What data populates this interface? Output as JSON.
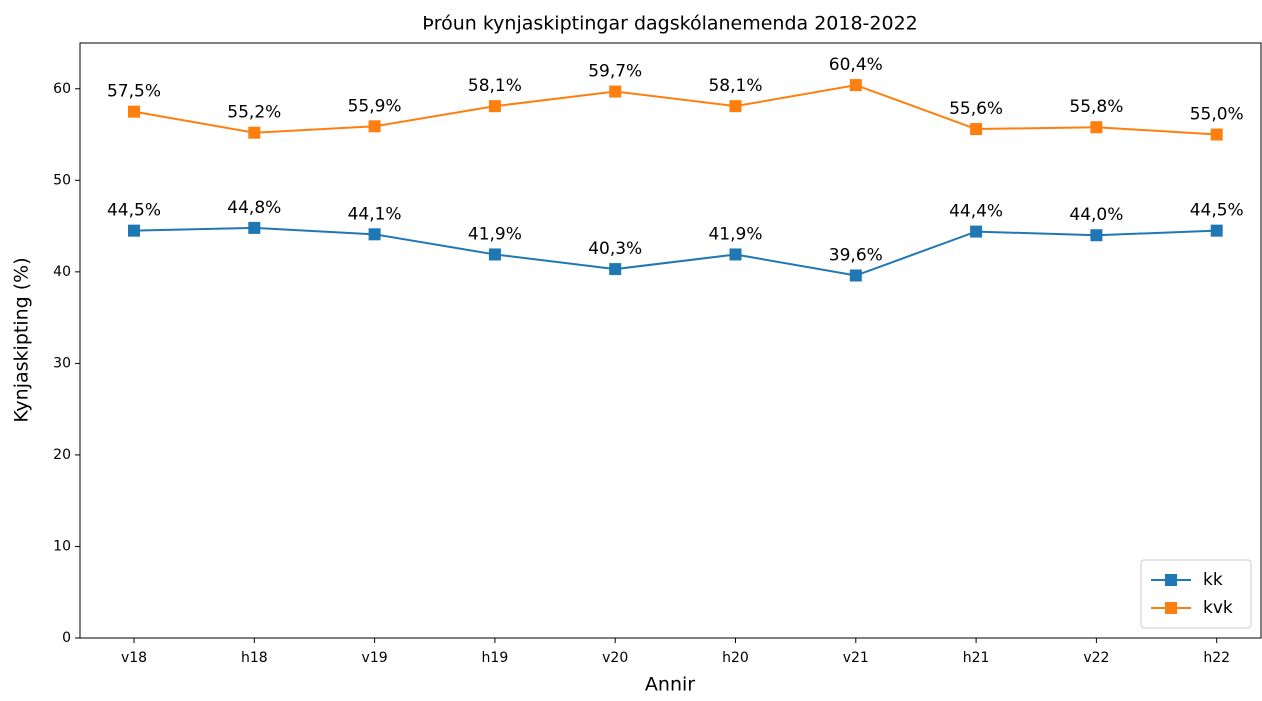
{
  "chart_data": {
    "type": "line",
    "title": "Þróun kynjaskiptingar dagskólanemenda 2018-2022",
    "x_label": "Annir",
    "y_label": "Kynjaskipting (%)",
    "categories": [
      "v18",
      "h18",
      "v19",
      "h19",
      "v20",
      "h20",
      "v21",
      "h21",
      "v22",
      "h22"
    ],
    "series": [
      {
        "name": "kk",
        "color": "#1f77b4",
        "values": [
          44.5,
          44.8,
          44.1,
          41.9,
          40.3,
          41.9,
          39.6,
          44.4,
          44.0,
          44.5
        ],
        "value_labels": [
          "44,5%",
          "44,8%",
          "44,1%",
          "41,9%",
          "40,3%",
          "41,9%",
          "39,6%",
          "44,4%",
          "44,0%",
          "44,5%"
        ]
      },
      {
        "name": "kvk",
        "color": "#ff7f0e",
        "values": [
          57.5,
          55.2,
          55.9,
          58.1,
          59.7,
          58.1,
          60.4,
          55.6,
          55.8,
          55.0
        ],
        "value_labels": [
          "57,5%",
          "55,2%",
          "55,9%",
          "58,1%",
          "59,7%",
          "58,1%",
          "60,4%",
          "55,6%",
          "55,8%",
          "55,0%"
        ]
      }
    ],
    "ylim": [
      0,
      65
    ],
    "yticks": [
      0,
      10,
      20,
      30,
      40,
      50,
      60
    ],
    "grid": false,
    "legend": "lower right"
  }
}
